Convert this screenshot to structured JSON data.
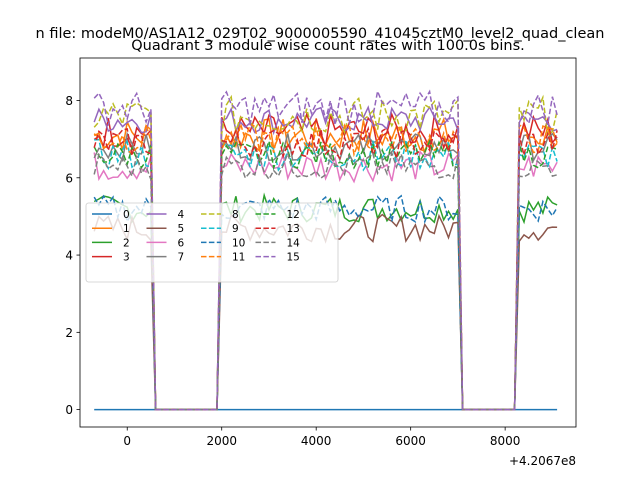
{
  "figure": {
    "suptitle": "n file: modeM0/AS1A12_029T02_9000005590_41045cztM0_level2_quad_clean"
  },
  "chart_data": {
    "type": "line",
    "title": "Quadrant 3 module wise count rates with 100.0s bins.",
    "xlabel": "",
    "ylabel": "",
    "x_offset_label": "+4.2067e8",
    "xlim": [
      -1000,
      9500
    ],
    "ylim": [
      -0.45,
      9.1
    ],
    "xticks": [
      0,
      2000,
      4000,
      6000,
      8000
    ],
    "yticks": [
      0,
      2,
      4,
      6,
      8
    ],
    "grid": false,
    "legend": {
      "placement": "center-left",
      "columns": 4
    },
    "x_range": [
      -700,
      9150
    ],
    "step": 100,
    "gaps": [
      [
        600,
        1900
      ],
      [
        7100,
        8200
      ]
    ],
    "series": [
      {
        "name": "0",
        "color": "#1f77b4",
        "dash": "solid",
        "level": 0.0,
        "var": 0.0
      },
      {
        "name": "1",
        "color": "#ff7f0e",
        "dash": "solid",
        "level": 7.1,
        "var": 0.45
      },
      {
        "name": "2",
        "color": "#2ca02c",
        "dash": "solid",
        "level": 5.2,
        "var": 0.35
      },
      {
        "name": "3",
        "color": "#d62728",
        "dash": "solid",
        "level": 7.2,
        "var": 0.45
      },
      {
        "name": "4",
        "color": "#9467bd",
        "dash": "solid",
        "level": 7.5,
        "var": 0.35
      },
      {
        "name": "5",
        "color": "#8c564b",
        "dash": "solid",
        "level": 4.7,
        "var": 0.35
      },
      {
        "name": "6",
        "color": "#e377c2",
        "dash": "solid",
        "level": 6.3,
        "var": 0.4
      },
      {
        "name": "7",
        "color": "#7f7f7f",
        "dash": "solid",
        "level": 6.8,
        "var": 0.35
      },
      {
        "name": "8",
        "color": "#bcbd22",
        "dash": "dashed",
        "level": 7.6,
        "var": 0.5
      },
      {
        "name": "9",
        "color": "#17becf",
        "dash": "dashed",
        "level": 6.6,
        "var": 0.4
      },
      {
        "name": "10",
        "color": "#1f77b4",
        "dash": "dashed",
        "level": 5.2,
        "var": 0.35
      },
      {
        "name": "11",
        "color": "#ff7f0e",
        "dash": "dashed",
        "level": 7.0,
        "var": 0.4
      },
      {
        "name": "12",
        "color": "#2ca02c",
        "dash": "dashed",
        "level": 6.6,
        "var": 0.35
      },
      {
        "name": "13",
        "color": "#d62728",
        "dash": "dashed",
        "level": 6.9,
        "var": 0.4
      },
      {
        "name": "14",
        "color": "#7f7f7f",
        "dash": "dashed",
        "level": 6.3,
        "var": 0.35
      },
      {
        "name": "15",
        "color": "#9467bd",
        "dash": "dashed",
        "level": 7.8,
        "var": 0.45
      }
    ]
  }
}
